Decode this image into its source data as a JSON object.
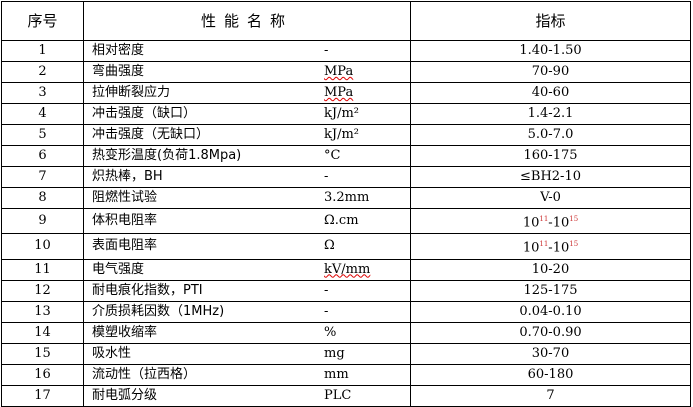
{
  "header": {
    "no": "序号",
    "name": "性能名称",
    "value": "指标"
  },
  "rows": [
    {
      "no": "1",
      "name": "相对密度",
      "unit": "-",
      "value": "1.40-1.50"
    },
    {
      "no": "2",
      "name": "弯曲强度",
      "unit": "MPa",
      "value": "70-90"
    },
    {
      "no": "3",
      "name": "拉伸断裂应力",
      "unit": "MPa",
      "value": "40-60"
    },
    {
      "no": "4",
      "name": "冲击强度（缺口）",
      "unit": "kJ/m²",
      "value": "1.4-2.1"
    },
    {
      "no": "5",
      "name": "冲击强度（无缺口）",
      "unit": "kJ/m²",
      "value": "5.0-7.0"
    },
    {
      "no": "6",
      "name": "热变形温度(负荷1.8Mpa)",
      "unit": "°C",
      "value": "160-175"
    },
    {
      "no": "7",
      "name": "炽热棒，BH",
      "unit": "-",
      "value": "≤BH2-10"
    },
    {
      "no": "8",
      "name": "阻燃性试验",
      "unit": "3.2mm",
      "value": "V-0"
    },
    {
      "no": "9",
      "name": "体积电阻率",
      "unit": "Ω.cm",
      "value": "10",
      "exp1": "11",
      "value2": "-10",
      "exp2": "15"
    },
    {
      "no": "10",
      "name": "表面电阻率",
      "unit": "Ω",
      "value": "10",
      "exp1": "11",
      "value2": "-10",
      "exp2": "15"
    },
    {
      "no": "11",
      "name": "电气强度",
      "unit": "kV/mm",
      "value": "10-20"
    },
    {
      "no": "12",
      "name": "耐电痕化指数，PTI",
      "unit": "-",
      "value": "125-175"
    },
    {
      "no": "13",
      "name": "介质损耗因数（1MHz)",
      "unit": "-",
      "value": "0.04-0.10"
    },
    {
      "no": "14",
      "name": "模塑收缩率",
      "unit": "%",
      "value": "0.70-0.90"
    },
    {
      "no": "15",
      "name": "吸水性",
      "unit": "mg",
      "value": "30-70"
    },
    {
      "no": "16",
      "name": "流动性（拉西格）",
      "unit": "mm",
      "value": "60-180"
    },
    {
      "no": "17",
      "name": "耐电弧分级",
      "unit": "PLC",
      "value": "7"
    }
  ]
}
